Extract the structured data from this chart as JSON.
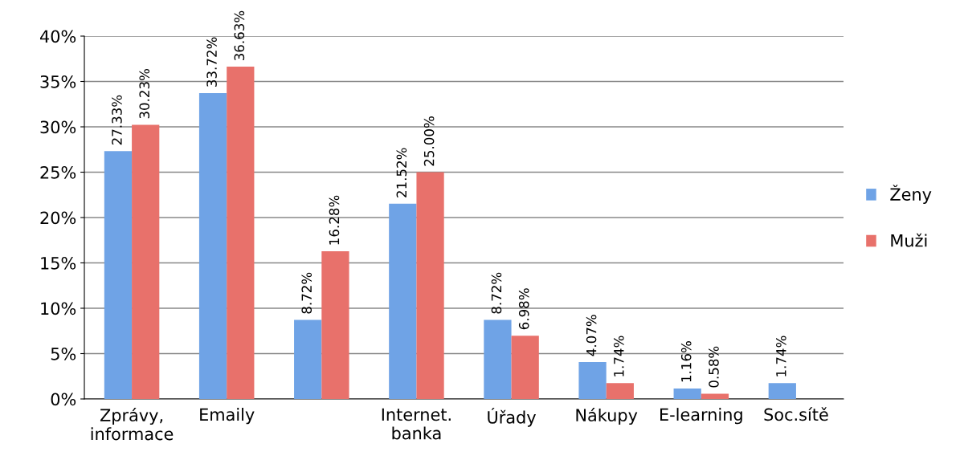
{
  "chart_data": {
    "type": "bar",
    "categories": [
      "Zprávy,\ninformace",
      "Emaily",
      null,
      "Internet.\nbanka",
      "Úřady",
      "Nákupy",
      "E-learning",
      "Soc.sítě"
    ],
    "series": [
      {
        "name": "Ženy",
        "color": "#6fa3e6",
        "values": [
          27.33,
          33.72,
          8.72,
          21.52,
          8.72,
          4.07,
          1.16,
          1.74
        ],
        "value_labels": [
          "27.33%",
          "33.72%",
          "8.72%",
          "21.52%",
          "8.72%",
          "4.07%",
          "1.16%",
          "1.74%"
        ]
      },
      {
        "name": "Muži",
        "color": "#e8716b",
        "values": [
          30.23,
          36.63,
          16.28,
          25.0,
          6.98,
          1.74,
          0.58,
          null
        ],
        "value_labels": [
          "30.23%",
          "36.63%",
          "16.28%",
          "25.00%",
          "6.98%",
          "1.74%",
          "0.58%",
          null
        ]
      }
    ],
    "ylim": [
      0,
      40
    ],
    "yticks": [
      {
        "value": 0,
        "label": "0%"
      },
      {
        "value": 5,
        "label": "5%"
      },
      {
        "value": 10,
        "label": "10%"
      },
      {
        "value": 15,
        "label": "15%"
      },
      {
        "value": 20,
        "label": "20%"
      },
      {
        "value": 25,
        "label": "25%"
      },
      {
        "value": 30,
        "label": "30%"
      },
      {
        "value": 35,
        "label": "35%"
      },
      {
        "value": 40,
        "label": "40%"
      }
    ],
    "grid": "y",
    "legend": "right"
  }
}
